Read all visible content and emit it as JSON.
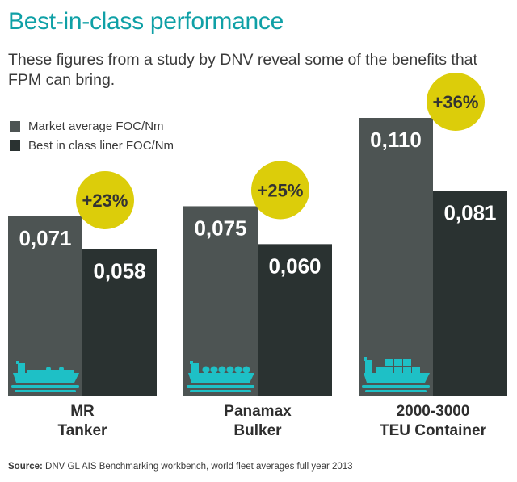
{
  "title": "Best-in-class performance",
  "subtitle": "These figures from a study by DNV reveal some of the benefits that FPM can bring.",
  "legend": {
    "market": "Market average FOC/Nm",
    "best": "Best in class liner FOC/Nm"
  },
  "colors": {
    "title": "#0fa0a6",
    "market": "#4d5453",
    "best": "#2a3231",
    "badge": "#dccd0a",
    "ship": "#1ec0c6"
  },
  "source": {
    "label": "Source:",
    "text": " DNV GL AIS Benchmarking workbench, world fleet averages full year 2013"
  },
  "chart_data": {
    "type": "bar",
    "categories": [
      [
        "MR",
        "Tanker"
      ],
      [
        "Panamax",
        "Bulker"
      ],
      [
        "2000-3000",
        "TEU Container"
      ]
    ],
    "series": [
      {
        "name": "Market average FOC/Nm",
        "values": [
          0.071,
          0.075,
          0.11
        ],
        "labels": [
          "0,071",
          "0,075",
          "0,110"
        ]
      },
      {
        "name": "Best in class liner FOC/Nm",
        "values": [
          0.058,
          0.06,
          0.081
        ],
        "labels": [
          "0,058",
          "0,060",
          "0,081"
        ]
      }
    ],
    "annotations": [
      "+23%",
      "+25%",
      "+36%"
    ],
    "icons": [
      "tanker-ship-icon",
      "bulker-ship-icon",
      "container-ship-icon"
    ],
    "ylim": [
      0,
      0.11
    ],
    "grid": false,
    "legend_position": "top-left"
  }
}
